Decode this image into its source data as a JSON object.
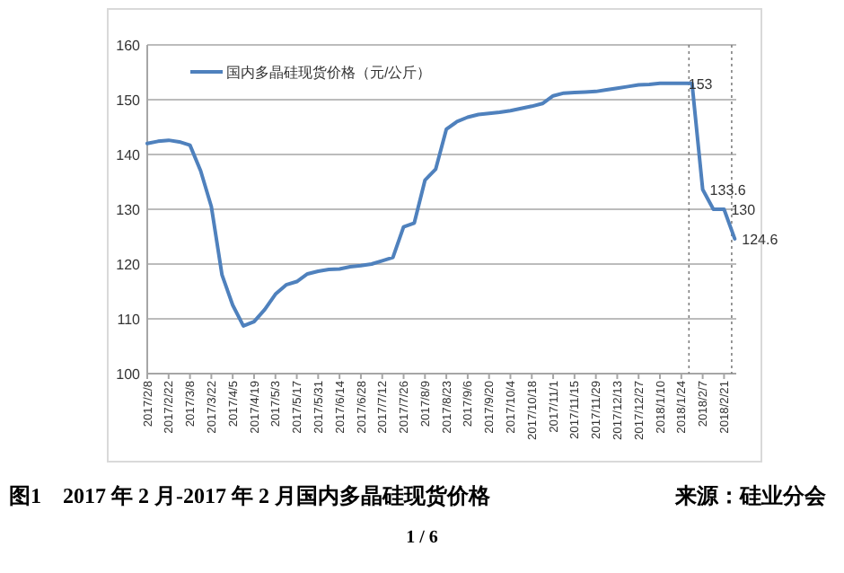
{
  "chart_data": {
    "type": "line",
    "title": "图1    2017 年 2 月-2017 年 2 月国内多晶硅现货价格",
    "x": [
      "2017-02-08",
      "2017-02-15",
      "2017-02-22",
      "2017-03-01",
      "2017-03-08",
      "2017-03-15",
      "2017-03-22",
      "2017-03-29",
      "2017-04-05",
      "2017-04-12",
      "2017-04-19",
      "2017-04-26",
      "2017-05-03",
      "2017-05-10",
      "2017-05-17",
      "2017-05-24",
      "2017-05-31",
      "2017-06-07",
      "2017-06-14",
      "2017-06-21",
      "2017-06-28",
      "2017-07-05",
      "2017-07-12",
      "2017-07-19",
      "2017-07-26",
      "2017-08-02",
      "2017-08-09",
      "2017-08-16",
      "2017-08-23",
      "2017-08-30",
      "2017-09-06",
      "2017-09-13",
      "2017-09-20",
      "2017-09-27",
      "2017-10-04",
      "2017-10-11",
      "2017-10-18",
      "2017-10-25",
      "2017-11-01",
      "2017-11-08",
      "2017-11-15",
      "2017-11-22",
      "2017-11-29",
      "2017-12-06",
      "2017-12-13",
      "2017-12-20",
      "2017-12-27",
      "2018-01-03",
      "2018-01-10",
      "2018-01-17",
      "2018-01-24",
      "2018-01-31",
      "2018-02-07",
      "2018-02-14",
      "2018-02-21",
      "2018-02-28"
    ],
    "series": [
      {
        "name": "国内多晶硅现货价格（元/公斤）",
        "color": "#4f81bd",
        "values": [
          142.0,
          142.4,
          142.6,
          142.3,
          141.7,
          137.0,
          130.5,
          118.0,
          112.5,
          108.7,
          109.5,
          111.7,
          114.5,
          116.2,
          116.8,
          118.2,
          118.7,
          119.0,
          119.1,
          119.5,
          119.7,
          120.0,
          120.6,
          121.2,
          126.8,
          127.5,
          135.3,
          137.3,
          144.6,
          146.0,
          146.8,
          147.3,
          147.5,
          147.7,
          148.0,
          148.4,
          148.8,
          149.3,
          150.7,
          151.2,
          151.3,
          151.4,
          151.5,
          151.8,
          152.1,
          152.4,
          152.7,
          152.8,
          153,
          153,
          153,
          153,
          133.6,
          130,
          130,
          124.6
        ]
      }
    ],
    "xlim": [
      "2017-02-08",
      "2018-03-01"
    ],
    "xticks": [
      {
        "value": "2017-02-08",
        "label": "2017/2/8"
      },
      {
        "value": "2017-02-22",
        "label": "2017/2/22"
      },
      {
        "value": "2017-03-08",
        "label": "2017/3/8"
      },
      {
        "value": "2017-03-22",
        "label": "2017/3/22"
      },
      {
        "value": "2017-04-05",
        "label": "2017/4/5"
      },
      {
        "value": "2017-04-19",
        "label": "2017/4/19"
      },
      {
        "value": "2017-05-03",
        "label": "2017/5/3"
      },
      {
        "value": "2017-05-17",
        "label": "2017/5/17"
      },
      {
        "value": "2017-05-31",
        "label": "2017/5/31"
      },
      {
        "value": "2017-06-14",
        "label": "2017/6/14"
      },
      {
        "value": "2017-06-28",
        "label": "2017/6/28"
      },
      {
        "value": "2017-07-12",
        "label": "2017/7/12"
      },
      {
        "value": "2017-07-26",
        "label": "2017/7/26"
      },
      {
        "value": "2017-08-09",
        "label": "2017/8/9"
      },
      {
        "value": "2017-08-23",
        "label": "2017/8/23"
      },
      {
        "value": "2017-09-06",
        "label": "2017/9/6"
      },
      {
        "value": "2017-09-20",
        "label": "2017/9/20"
      },
      {
        "value": "2017-10-04",
        "label": "2017/10/4"
      },
      {
        "value": "2017-10-18",
        "label": "2017/10/18"
      },
      {
        "value": "2017-11-01",
        "label": "2017/11/1"
      },
      {
        "value": "2017-11-15",
        "label": "2017/11/15"
      },
      {
        "value": "2017-11-29",
        "label": "2017/11/29"
      },
      {
        "value": "2017-12-13",
        "label": "2017/12/13"
      },
      {
        "value": "2017-12-27",
        "label": "2017/12/27"
      },
      {
        "value": "2018-01-10",
        "label": "2018/1/10"
      },
      {
        "value": "2018-01-24",
        "label": "2018/1/24"
      },
      {
        "value": "2018-02-07",
        "label": "2018/2/7"
      },
      {
        "value": "2018-02-21",
        "label": "2018/2/21"
      }
    ],
    "ylim": [
      100,
      160
    ],
    "yticks": [
      100,
      110,
      120,
      130,
      140,
      150,
      160
    ],
    "grid": "y",
    "legend": "top left",
    "marker": "none",
    "line_style": "solid",
    "ref_lines": [
      {
        "axis": "x",
        "value": "2018-01-29",
        "color": "#808080",
        "line_style": "dotted"
      },
      {
        "axis": "x",
        "value": "2018-02-26",
        "color": "#808080",
        "line_style": "dotted"
      }
    ],
    "annotations": [
      {
        "text": "153",
        "x": "2018-01-24",
        "y": 153
      },
      {
        "text": "133.6",
        "x": "2018-02-07",
        "y": 133.6
      },
      {
        "text": "130",
        "x": "2018-02-21",
        "y": 130
      },
      {
        "text": "124.6",
        "x": "2018-02-28",
        "y": 124.6
      },
      "来源：硅业分会",
      "1 / 6"
    ]
  }
}
